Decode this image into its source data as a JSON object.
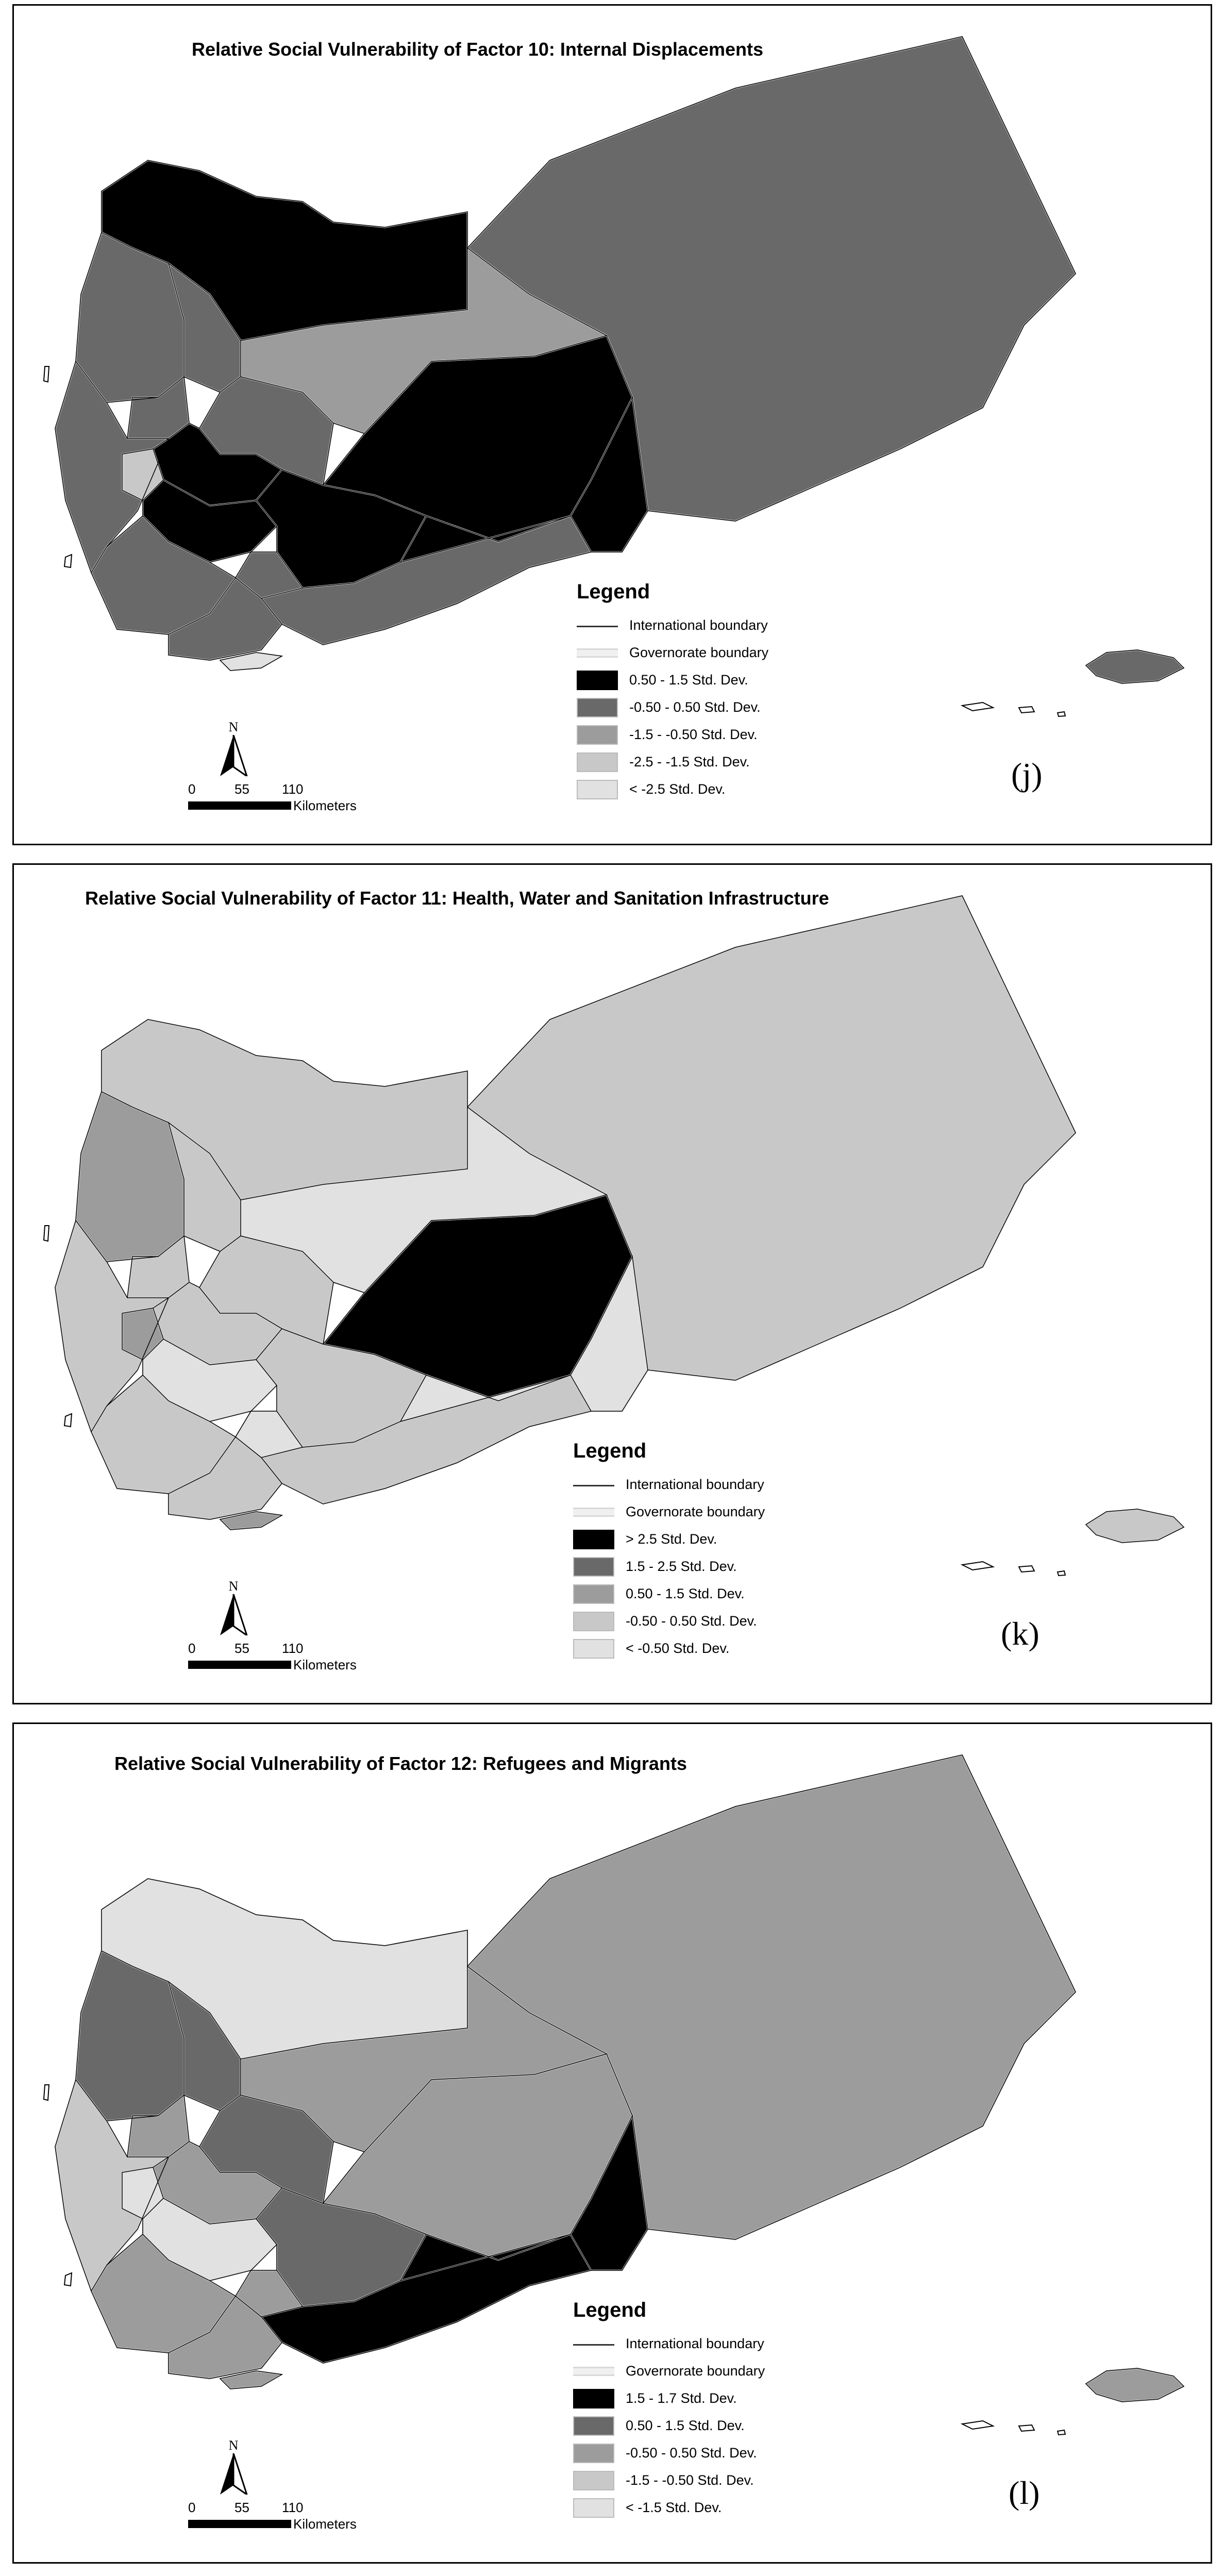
{
  "panels": [
    {
      "title": "Relative Social Vulnerability of Factor 10: Internal Displacements",
      "label": "(j)",
      "legend": {
        "title": "Legend",
        "international": "International boundary",
        "governorate": "Governorate boundary",
        "classes": [
          {
            "label": "0.50 - 1.5 Std. Dev.",
            "color": "#000000"
          },
          {
            "label": "-0.50 - 0.50 Std. Dev.",
            "color": "#696969"
          },
          {
            "label": "-1.5 - -0.50 Std. Dev.",
            "color": "#9c9c9c"
          },
          {
            "label": "-2.5 - -1.5 Std. Dev.",
            "color": "#c8c8c8"
          },
          {
            "label": "< -2.5 Std. Dev.",
            "color": "#e1e1e1"
          }
        ]
      }
    },
    {
      "title": "Relative Social Vulnerability of Factor 11: Health, Water and Sanitation Infrastructure",
      "label": "(k)",
      "legend": {
        "title": "Legend",
        "international": "International boundary",
        "governorate": "Governorate boundary",
        "classes": [
          {
            "label": "> 2.5 Std. Dev.",
            "color": "#000000"
          },
          {
            "label": "1.5 - 2.5 Std. Dev.",
            "color": "#696969"
          },
          {
            "label": "0.50 - 1.5 Std. Dev.",
            "color": "#9c9c9c"
          },
          {
            "label": "-0.50 - 0.50 Std. Dev.",
            "color": "#c8c8c8"
          },
          {
            "label": "< -0.50 Std. Dev.",
            "color": "#e1e1e1"
          }
        ]
      }
    },
    {
      "title": "Relative Social Vulnerability of Factor 12: Refugees and Migrants",
      "label": "(l)",
      "legend": {
        "title": "Legend",
        "international": "International boundary",
        "governorate": "Governorate boundary",
        "classes": [
          {
            "label": "1.5 - 1.7 Std. Dev.",
            "color": "#000000"
          },
          {
            "label": "0.50 - 1.5 Std. Dev.",
            "color": "#696969"
          },
          {
            "label": "-0.50 - 0.50 Std. Dev.",
            "color": "#9c9c9c"
          },
          {
            "label": "-1.5 - -0.50 Std. Dev.",
            "color": "#c8c8c8"
          },
          {
            "label": "< -1.5 Std. Dev.",
            "color": "#e1e1e1"
          }
        ]
      }
    }
  ],
  "north_arrow": {
    "letter": "N"
  },
  "scale_bar": {
    "ticks": [
      "0",
      "55",
      "110"
    ],
    "unit": "Kilometers"
  },
  "region_classes": [
    {
      "hadramaut": 1,
      "marib": 0,
      "jawf": 2,
      "saada": 0,
      "amran": 1,
      "hajjah": 1,
      "hodeidah": 1,
      "mahwit": 1,
      "sanaa": 1,
      "raymah": 3,
      "dhamar": 0,
      "ibb": 0,
      "bayda": 0,
      "shabwa": 0,
      "abyan": 1,
      "lahij": 1,
      "taiz": 1,
      "aden": 4,
      "dhale": 1,
      "socotra": 1
    },
    {
      "hadramaut": 3,
      "marib": 0,
      "jawf": 4,
      "saada": 3,
      "amran": 3,
      "hajjah": 2,
      "hodeidah": 3,
      "mahwit": 3,
      "sanaa": 3,
      "raymah": 2,
      "dhamar": 3,
      "ibb": 4,
      "bayda": 3,
      "shabwa": 4,
      "abyan": 3,
      "lahij": 3,
      "taiz": 3,
      "aden": 2,
      "dhale": 4,
      "socotra": 3
    },
    {
      "hadramaut": 2,
      "marib": 2,
      "jawf": 2,
      "saada": 4,
      "amran": 1,
      "hajjah": 1,
      "hodeidah": 3,
      "mahwit": 2,
      "sanaa": 1,
      "raymah": 4,
      "dhamar": 2,
      "ibb": 4,
      "bayda": 1,
      "shabwa": 0,
      "abyan": 0,
      "lahij": 2,
      "taiz": 2,
      "aden": 2,
      "dhale": 2,
      "socotra": 2
    }
  ]
}
